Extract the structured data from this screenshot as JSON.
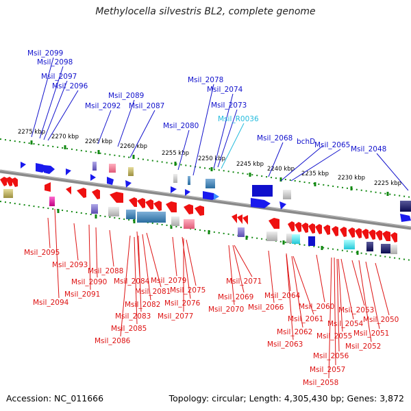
{
  "title": "Methylocella silvestris BL2, complete genome",
  "accession": "Accession: NC_011666",
  "topology": "Topology: circular; Length: 4,305,430 bp; Genes: 3,872",
  "colors": {
    "forward_label": "#1010cc",
    "rna_label": "#22bbdd",
    "reverse_label": "#dd1111",
    "backbone": "#888888",
    "tick": "#118811"
  },
  "ticks": [
    "2275 kbp",
    "2270 kbp",
    "2265 kbp",
    "2260 kbp",
    "2255 kbp",
    "2250 kbp",
    "2245 kbp",
    "2240 kbp",
    "2235 kbp",
    "2230 kbp",
    "2225 kbp"
  ],
  "top_labels": [
    {
      "text": "Msil_2099",
      "kind": "gene"
    },
    {
      "text": "Msil_2098",
      "kind": "gene"
    },
    {
      "text": "Msil_2097",
      "kind": "gene"
    },
    {
      "text": "Msil_2096",
      "kind": "gene"
    },
    {
      "text": "Msil_2092",
      "kind": "gene"
    },
    {
      "text": "Msil_2089",
      "kind": "gene"
    },
    {
      "text": "Msil_2087",
      "kind": "gene"
    },
    {
      "text": "Msil_2080",
      "kind": "gene"
    },
    {
      "text": "Msil_2078",
      "kind": "gene"
    },
    {
      "text": "Msil_2074",
      "kind": "gene"
    },
    {
      "text": "Msil_2073",
      "kind": "gene"
    },
    {
      "text": "Msil_R0036",
      "kind": "rna"
    },
    {
      "text": "Msil_2068",
      "kind": "gene"
    },
    {
      "text": "bchD",
      "kind": "gene"
    },
    {
      "text": "Msil_2065",
      "kind": "gene"
    },
    {
      "text": "Msil_2048",
      "kind": "gene"
    }
  ],
  "bottom_labels": [
    "Msil_2095",
    "Msil_2093",
    "Msil_2094",
    "Msil_2088",
    "Msil_2090",
    "Msil_2091",
    "Msil_2084",
    "Msil_2079",
    "Msil_2081",
    "Msil_2075",
    "Msil_2082",
    "Msil_2076",
    "Msil_2083",
    "Msil_2077",
    "Msil_2085",
    "Msil_2086",
    "Msil_2071",
    "Msil_2069",
    "Msil_2070",
    "Msil_2066",
    "Msil_2064",
    "Msil_2060",
    "Msil_2061",
    "Msil_2053",
    "Msil_2050",
    "Msil_2054",
    "Msil_2062",
    "Msil_2051",
    "Msil_2055",
    "Msil_2063",
    "Msil_2052",
    "Msil_2056",
    "Msil_2057",
    "Msil_2058"
  ]
}
